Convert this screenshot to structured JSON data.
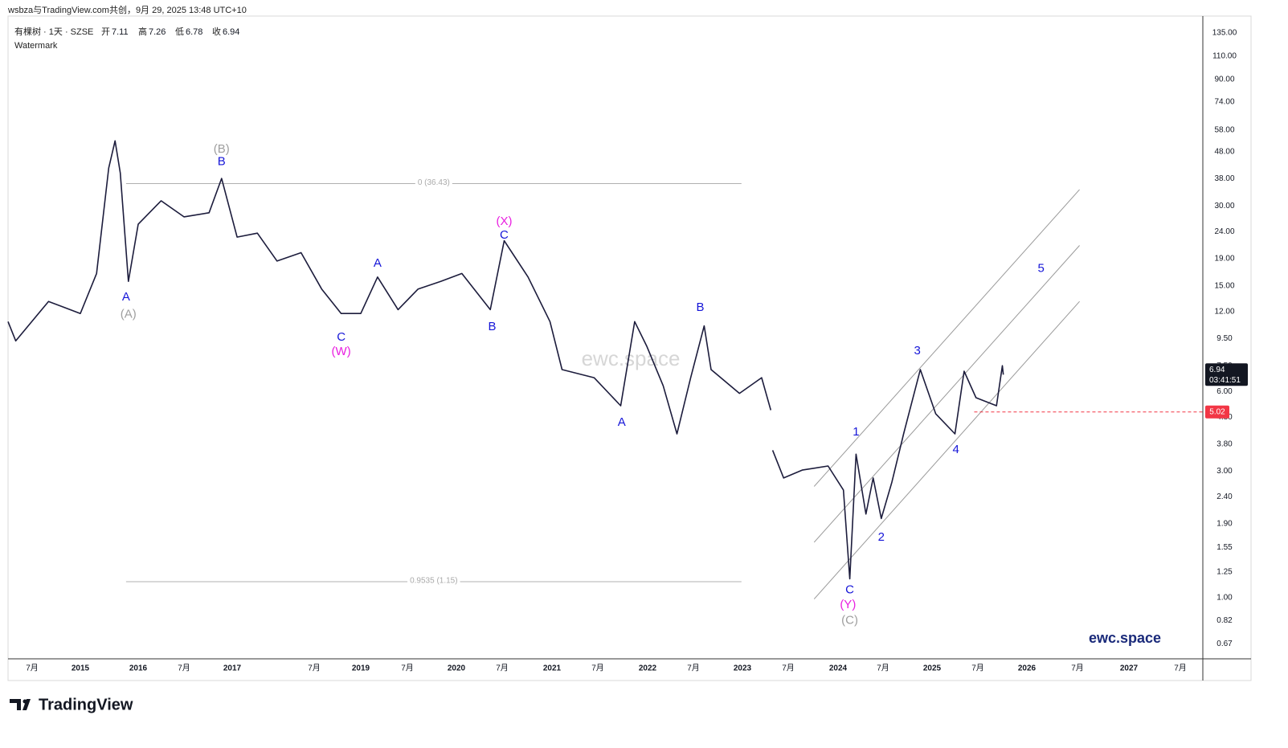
{
  "header": "wsbza与TradingView.com共创，9月 29, 2025 13:48 UTC+10",
  "chart_data": {
    "type": "line",
    "symbol": "有棵树 · 1天 · SZSE",
    "ohlc": [
      {
        "name": "开",
        "value": 7.11
      },
      {
        "name": "高",
        "value": 7.26
      },
      {
        "name": "低",
        "value": 6.78
      },
      {
        "name": "收",
        "value": 6.94
      }
    ],
    "indicator": "Watermark",
    "watermark": "ewc.space",
    "brand": "ewc.space",
    "log_scale": true,
    "grid": false,
    "xlim": [
      2014.25,
      2027.72
    ],
    "xticks": [
      {
        "value": 2014.5,
        "label": "7月"
      },
      2015,
      2016,
      {
        "value": 2016.5,
        "label": "7月"
      },
      2017,
      {
        "value": 2018.5,
        "label": "7月"
      },
      2019,
      {
        "value": 2019.5,
        "label": "7月"
      },
      2020,
      {
        "value": 2020.5,
        "label": "7月"
      },
      2021,
      {
        "value": 2021.5,
        "label": "7月"
      },
      2022,
      {
        "value": 2022.5,
        "label": "7月"
      },
      2023,
      {
        "value": 2023.5,
        "label": "7月"
      },
      2024,
      {
        "value": 2024.5,
        "label": "7月"
      },
      2025,
      {
        "value": 2025.5,
        "label": "7月"
      },
      2026,
      {
        "value": 2026.5,
        "label": "7月"
      },
      2027,
      {
        "value": 2027.5,
        "label": "7月"
      }
    ],
    "ylim": [
      0.589,
      156
    ],
    "yticks": [
      {
        "value": 135,
        "label": "135.00"
      },
      {
        "value": 110,
        "label": "110.00"
      },
      {
        "value": 90,
        "label": "90.00"
      },
      {
        "value": 74,
        "label": "74.00"
      },
      {
        "value": 58,
        "label": "58.00"
      },
      {
        "value": 48,
        "label": "48.00"
      },
      {
        "value": 38,
        "label": "38.00"
      },
      {
        "value": 30,
        "label": "30.00"
      },
      {
        "value": 24,
        "label": "24.00"
      },
      {
        "value": 19,
        "label": "19.00"
      },
      {
        "value": 15,
        "label": "15.00"
      },
      {
        "value": 12,
        "label": "12.00"
      },
      {
        "value": 9.5,
        "label": "9.50"
      },
      {
        "value": 7.5,
        "label": "7.50"
      },
      {
        "value": 6,
        "label": "6.00"
      },
      {
        "value": 4.8,
        "label": "4.80"
      },
      {
        "value": 3.8,
        "label": "3.80"
      },
      {
        "value": 3,
        "label": "3.00"
      },
      {
        "value": 2.4,
        "label": "2.40"
      },
      {
        "value": 1.9,
        "label": "1.90"
      },
      {
        "value": 1.55,
        "label": "1.55"
      },
      {
        "value": 1.25,
        "label": "1.25"
      },
      {
        "value": 1,
        "label": "1.00"
      },
      {
        "value": 0.82,
        "label": "0.82"
      },
      {
        "value": 0.67,
        "label": "0.67"
      }
    ],
    "series": [
      {
        "color": "#1c1c3c",
        "x": [
          2014.25,
          2014.33,
          2014.67,
          2015,
          2015.28,
          2015.49,
          2015.6,
          2015.69,
          2015.83,
          2016,
          2016.25,
          2016.5,
          2016.76,
          2016.89,
          2017.09,
          2017.46,
          2017.82,
          2018.26,
          2018.58,
          2018.79,
          2019.0,
          2019.18,
          2019.4,
          2019.61,
          2019.84,
          2020.06,
          2020.37,
          2020.52,
          2020.76,
          2020.98,
          2021.11,
          2021.46,
          2021.73,
          2021.87,
          2021.99,
          2022.17,
          2022.32,
          2022.47,
          2022.61,
          2022.68,
          2022.97,
          2023.21,
          2023.31,
          2023.32,
          2023.33,
          2023.45,
          2023.64,
          2023.9,
          2024.06,
          2024.13,
          2024.2,
          2024.31,
          2024.39,
          2024.48,
          2024.59,
          2024.71,
          2024.88,
          2025.04,
          2025.25,
          2025.35,
          2025.48,
          2025.69,
          2025.75,
          2025.76
        ],
        "values": [
          11.0,
          9.3,
          13.1,
          11.8,
          16.7,
          41.7,
          52.8,
          40,
          15.6,
          25.6,
          31.4,
          27.3,
          28.3,
          38.1,
          22.9,
          23.7,
          18.6,
          20.0,
          14.6,
          11.8,
          11.8,
          16.2,
          12.2,
          14.6,
          15.6,
          16.7,
          12.2,
          22.2,
          16.2,
          11.0,
          7.25,
          6.76,
          5.3,
          11.0,
          8.9,
          6.3,
          4.15,
          6.76,
          10.6,
          7.25,
          5.9,
          6.76,
          5.1,
          null,
          3.6,
          2.83,
          3.03,
          3.14,
          2.55,
          1.18,
          3.48,
          2.07,
          2.83,
          1.99,
          2.73,
          4.15,
          7.25,
          4.94,
          4.15,
          7.15,
          5.68,
          5.3,
          7.5,
          6.94
        ]
      }
    ],
    "fib_levels": [
      {
        "label": "0 (36.43)",
        "value": 36.43,
        "x": [
          2015.79,
          2022.99
        ]
      },
      {
        "label": "0.9535 (1.15)",
        "value": 1.15,
        "x": [
          2015.79,
          2022.99
        ]
      }
    ],
    "trend_lines": [
      {
        "x": [
          2023.76,
          2026.52
        ],
        "values": [
          2.63,
          34.6
        ]
      },
      {
        "x": [
          2023.76,
          2026.52
        ],
        "values": [
          1.62,
          21.3
        ]
      },
      {
        "x": [
          2023.76,
          2026.52
        ],
        "values": [
          0.99,
          13.1
        ]
      }
    ],
    "price_line": {
      "value": 5.02,
      "x": 2025.46,
      "color": "#f23645"
    },
    "last_price": {
      "value": 6.94,
      "countdown": "03:41:51"
    },
    "annotations": [
      {
        "text": "(B)",
        "color": "#9e9e9e",
        "x": 2016.89,
        "y": 49.0
      },
      {
        "text": "B",
        "color": "#1515d8",
        "x": 2016.89,
        "y": 44.0
      },
      {
        "text": "A",
        "color": "#1515d8",
        "x": 2015.79,
        "y": 13.6
      },
      {
        "text": "(A)",
        "color": "#9e9e9e",
        "x": 2015.83,
        "y": 11.7
      },
      {
        "text": "C",
        "color": "#1515d8",
        "x": 2018.79,
        "y": 9.6
      },
      {
        "text": "(W)",
        "color": "#e91ee0",
        "x": 2018.79,
        "y": 8.44
      },
      {
        "text": "A",
        "color": "#1515d8",
        "x": 2019.18,
        "y": 18.2
      },
      {
        "text": "(X)",
        "color": "#e91ee0",
        "x": 2020.52,
        "y": 26.2
      },
      {
        "text": "C",
        "color": "#1515d8",
        "x": 2020.52,
        "y": 23.2
      },
      {
        "text": "B",
        "color": "#1515d8",
        "x": 2020.39,
        "y": 10.5
      },
      {
        "text": "A",
        "color": "#1515d8",
        "x": 2021.74,
        "y": 4.57
      },
      {
        "text": "B",
        "color": "#1515d8",
        "x": 2022.57,
        "y": 12.4
      },
      {
        "text": "1",
        "color": "#1515d8",
        "x": 2024.2,
        "y": 4.21
      },
      {
        "text": "2",
        "color": "#1515d8",
        "x": 2024.48,
        "y": 1.69
      },
      {
        "text": "3",
        "color": "#1515d8",
        "x": 2024.85,
        "y": 8.5
      },
      {
        "text": "4",
        "color": "#1515d8",
        "x": 2025.26,
        "y": 3.61
      },
      {
        "text": "5",
        "color": "#1515d8",
        "x": 2026.14,
        "y": 17.4
      },
      {
        "text": "C",
        "color": "#1515d8",
        "x": 2024.13,
        "y": 1.07
      },
      {
        "text": "(Y)",
        "color": "#e91ee0",
        "x": 2024.11,
        "y": 0.94
      },
      {
        "text": "(C)",
        "color": "#9e9e9e",
        "x": 2024.13,
        "y": 0.82
      }
    ]
  },
  "footer": {
    "logo": "TradingView"
  }
}
